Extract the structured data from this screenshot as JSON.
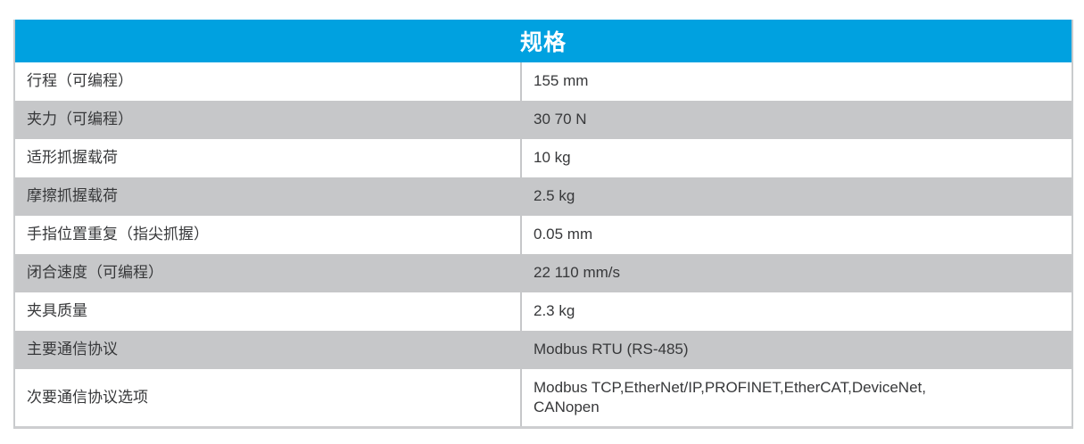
{
  "table": {
    "title": "规格",
    "rows": [
      {
        "label": "行程（可编程）",
        "value": "155 mm"
      },
      {
        "label": "夹力（可编程）",
        "value": "30 70 N"
      },
      {
        "label": "适形抓握载荷",
        "value": "10 kg"
      },
      {
        "label": "摩擦抓握载荷",
        "value": "2.5 kg"
      },
      {
        "label": "手指位置重复（指尖抓握）",
        "value": "0.05 mm"
      },
      {
        "label": "闭合速度（可编程）",
        "value": "22 110 mm/s"
      },
      {
        "label": "夹具质量",
        "value": "2.3 kg"
      },
      {
        "label": "主要通信协议",
        "value": "Modbus RTU (RS-485)"
      },
      {
        "label": "次要通信协议选项",
        "value": "Modbus TCP,EtherNet/IP,PROFINET,EtherCAT,DeviceNet,\nCANopen"
      }
    ]
  },
  "colors": {
    "header_bg": "#00A1E0",
    "header_text": "#FFFFFF",
    "row_bg": "#FFFFFF",
    "row_alt_bg": "#C6C7C9",
    "divider": "#C6C7C9",
    "border": "#C9CBCD",
    "text": "#37383A"
  }
}
